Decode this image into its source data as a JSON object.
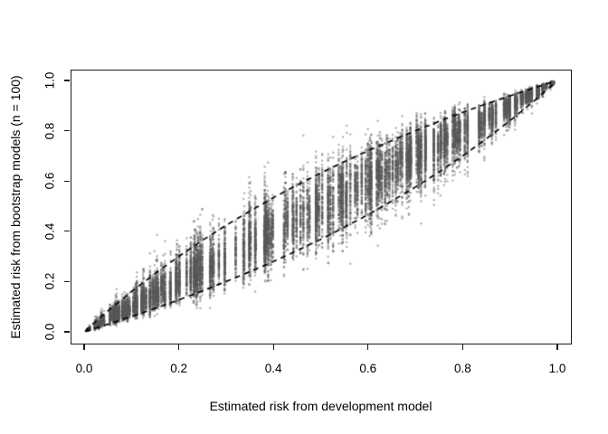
{
  "chart_data": {
    "type": "scatter",
    "xlabel": "Estimated risk from development model",
    "ylabel": "Estimated risk from bootstrap models (n = 100)",
    "xlim": [
      0,
      1
    ],
    "ylim": [
      0,
      1
    ],
    "grid": false,
    "legend": null,
    "x_ticks": [
      0,
      0.2,
      0.4,
      0.6,
      0.8,
      1
    ],
    "x_tick_labels": [
      "0.0",
      "0.2",
      "0.4",
      "0.6",
      "0.8",
      "1.0"
    ],
    "y_ticks": [
      0,
      0.2,
      0.4,
      0.6,
      0.8,
      1
    ],
    "y_tick_labels": [
      "0.0",
      "0.2",
      "0.4",
      "0.6",
      "0.8",
      "1.0"
    ],
    "point_cloud": {
      "description": "Prediction-instability cloud: each subject has one development-model risk (x) and ~100 bootstrap-model risks (y), forming gray vertical streaks that pinch together at (0,0) and (1,1).",
      "n_subjects": 215,
      "bootstraps_per_subject": 100,
      "color": "#585858",
      "alpha": 0.45,
      "radius": 1.25,
      "seed": 1337,
      "x_logit_mean": 0.1,
      "x_logit_sd": 1.75,
      "y_logit_sd_base": 0.275,
      "y_logit_sd_min_factor": 0.75,
      "y_logit_sd_range_factor": 0.6,
      "subject_bias_logit_sd": 0.07
    },
    "envelope": {
      "description": "Dashed 2.5th and 97.5th percentile instability bounds",
      "style": "dashed",
      "color": "#000000",
      "x": [
        0.002,
        0.01,
        0.02,
        0.05,
        0.1,
        0.15,
        0.2,
        0.25,
        0.3,
        0.35,
        0.4,
        0.45,
        0.5,
        0.55,
        0.6,
        0.65,
        0.7,
        0.75,
        0.8,
        0.85,
        0.9,
        0.95,
        0.99
      ],
      "upper": [
        0.003,
        0.017,
        0.034,
        0.083,
        0.16,
        0.232,
        0.3,
        0.364,
        0.424,
        0.48,
        0.534,
        0.584,
        0.632,
        0.677,
        0.72,
        0.761,
        0.8,
        0.837,
        0.873,
        0.907,
        0.939,
        0.97,
        0.994
      ],
      "lower": [
        0.001,
        0.006,
        0.012,
        0.03,
        0.061,
        0.093,
        0.127,
        0.163,
        0.2,
        0.239,
        0.28,
        0.323,
        0.368,
        0.416,
        0.466,
        0.52,
        0.576,
        0.636,
        0.7,
        0.768,
        0.84,
        0.917,
        0.983
      ]
    }
  }
}
